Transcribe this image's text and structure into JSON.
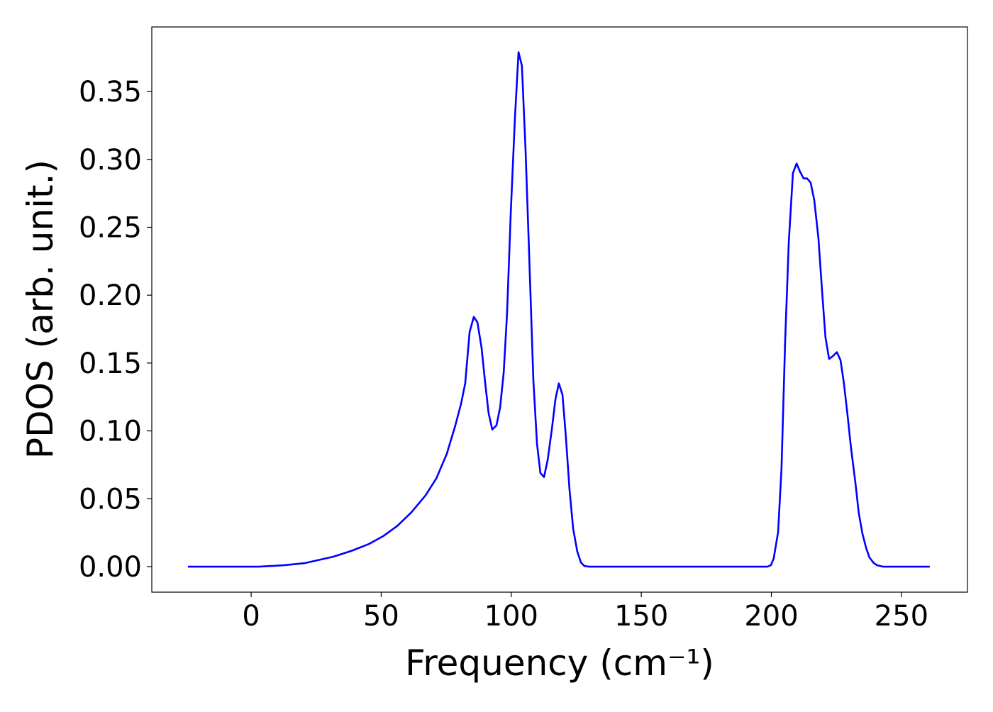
{
  "chart_data": {
    "type": "line",
    "xlabel": "Frequency (cm⁻¹)",
    "ylabel": "PDOS (arb. unit.)",
    "x": [
      -24.3,
      3,
      12.5,
      20.7,
      31.6,
      38.4,
      45.3,
      50.7,
      56.2,
      61.6,
      67.1,
      71.2,
      75.2,
      78.5,
      80.7,
      82.3,
      84.0,
      85.6,
      87.0,
      88.6,
      90.0,
      91.3,
      92.7,
      94.3,
      95.7,
      97.1,
      98.4,
      99.8,
      101.4,
      102.8,
      104.1,
      105.5,
      106.9,
      108.5,
      109.9,
      111.2,
      112.6,
      114.0,
      115.6,
      117.0,
      118.3,
      119.7,
      121.0,
      122.4,
      123.8,
      125.4,
      126.8,
      128.1,
      129.8,
      198.5,
      199.8,
      200.9,
      202.6,
      203.9,
      205.3,
      206.7,
      208.3,
      209.7,
      211.0,
      212.4,
      213.7,
      215.1,
      216.5,
      218.1,
      219.5,
      220.8,
      222.2,
      223.6,
      225.2,
      226.6,
      227.9,
      229.3,
      230.6,
      232.3,
      233.6,
      235.0,
      236.4,
      237.7,
      239.4,
      240.7,
      242.9,
      260.9
    ],
    "values": [
      0,
      0,
      0.001,
      0.0026,
      0.0073,
      0.0115,
      0.0167,
      0.0224,
      0.03,
      0.04,
      0.0526,
      0.065,
      0.083,
      0.104,
      0.12,
      0.135,
      0.173,
      0.184,
      0.18,
      0.161,
      0.135,
      0.113,
      0.101,
      0.104,
      0.117,
      0.143,
      0.187,
      0.26,
      0.33,
      0.379,
      0.369,
      0.307,
      0.229,
      0.1375,
      0.0906,
      0.069,
      0.066,
      0.0786,
      0.101,
      0.1234,
      0.135,
      0.1266,
      0.0958,
      0.0568,
      0.028,
      0.011,
      0.003,
      0.0005,
      0,
      0,
      0.001,
      0.006,
      0.0255,
      0.072,
      0.166,
      0.239,
      0.29,
      0.297,
      0.291,
      0.286,
      0.286,
      0.283,
      0.27,
      0.242,
      0.203,
      0.169,
      0.153,
      0.155,
      0.158,
      0.152,
      0.135,
      0.1115,
      0.088,
      0.062,
      0.0396,
      0.0245,
      0.014,
      0.0068,
      0.0026,
      0.001,
      0,
      0
    ],
    "color": "#0000ff",
    "xlim": [
      -38.2,
      275.4
    ],
    "ylim": [
      -0.0188,
      0.3976
    ],
    "xticks": [
      0,
      50,
      100,
      150,
      200,
      250
    ],
    "yticks": [
      {
        "value": 0,
        "label": "0.00"
      },
      0.05,
      {
        "value": 0.1,
        "label": "0.10"
      },
      0.15,
      {
        "value": 0.2,
        "label": "0.20"
      },
      0.25,
      {
        "value": 0.3,
        "label": "0.30"
      },
      0.35
    ]
  }
}
